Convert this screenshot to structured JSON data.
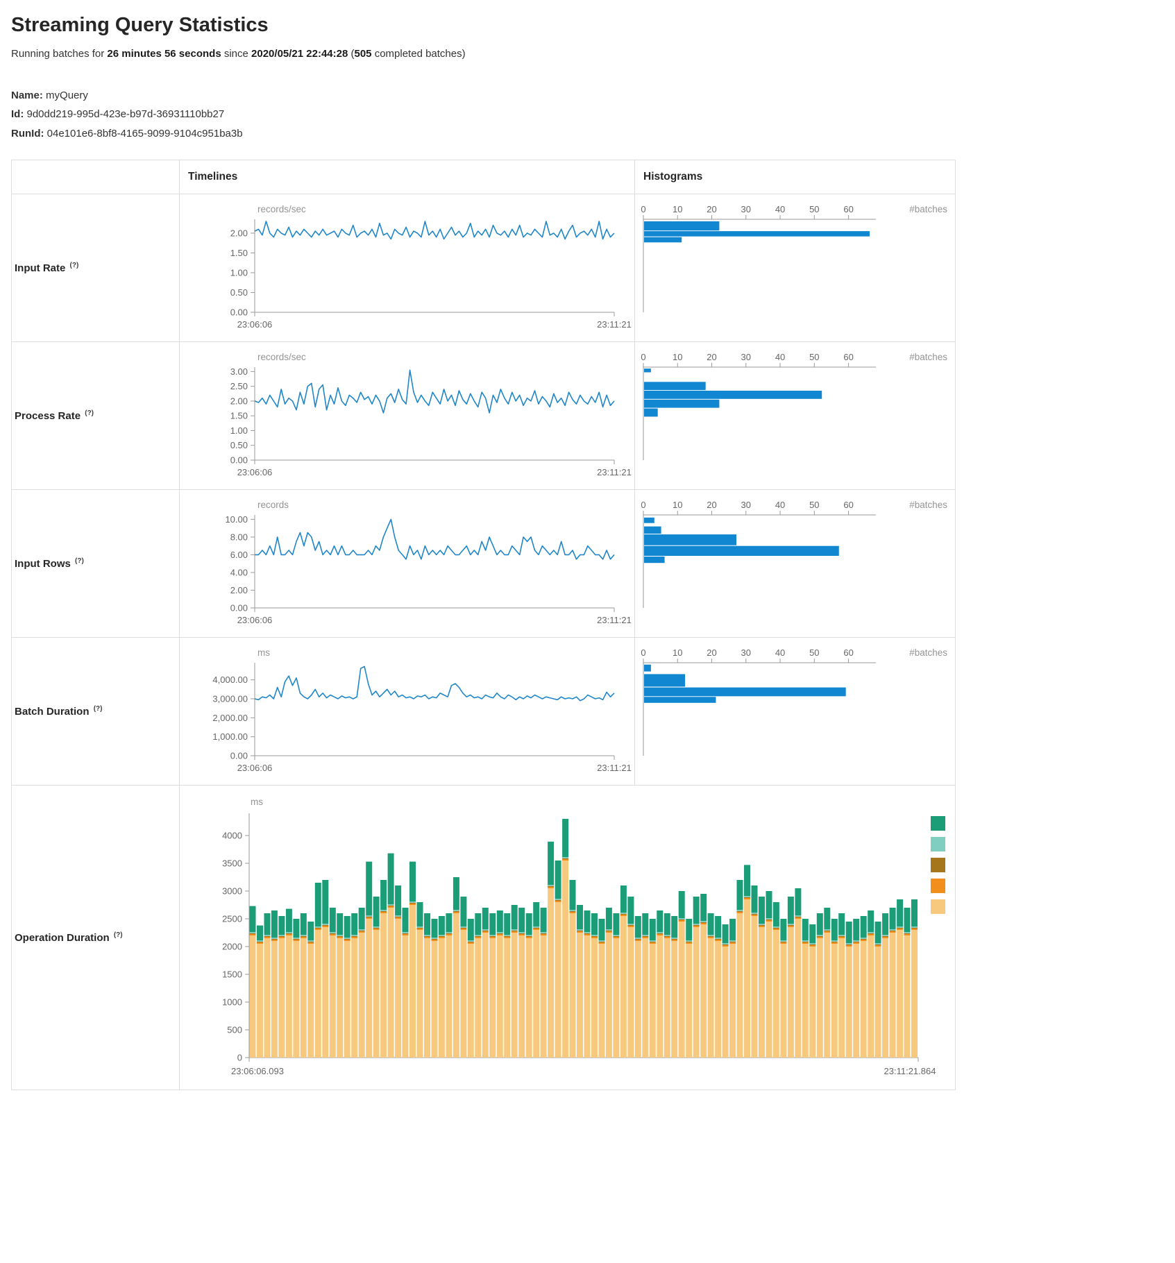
{
  "page": {
    "title": "Streaming Query Statistics",
    "status": {
      "prefix": "Running batches for ",
      "duration": "26 minutes 56 seconds",
      "since": " since ",
      "start_time": "2020/05/21 22:44:28",
      "paren": " (",
      "batch_count": "505",
      "suffix": " completed batches)"
    },
    "meta": {
      "name_label": "Name:",
      "name_value": "myQuery",
      "id_label": "Id:",
      "id_value": "9d0dd219-995d-423e-b97d-36931110bb27",
      "runid_label": "RunId:",
      "runid_value": "04e101e6-8bf8-4165-9099-9104c951ba3b"
    }
  },
  "table": {
    "col_timelines": "Timelines",
    "col_histograms": "Histograms",
    "rows": [
      {
        "label": "Input Rate",
        "hint": "(?)"
      },
      {
        "label": "Process Rate",
        "hint": "(?)"
      },
      {
        "label": "Input Rows",
        "hint": "(?)"
      },
      {
        "label": "Batch Duration",
        "hint": "(?)"
      },
      {
        "label": "Operation Duration",
        "hint": "(?)"
      }
    ]
  },
  "colors": {
    "line_blue": "#1f86c9",
    "hist_blue": "#1287d1",
    "axis_gray": "#9a9a9a",
    "tick_text": "#666666",
    "unit_text": "#949494"
  },
  "chart_data": [
    {
      "id": "input-rate-timeline",
      "type": "line",
      "row": "Input Rate",
      "unit": "records/sec",
      "color": "#1f86c9",
      "x_start": "23:06:06",
      "x_end": "23:11:21",
      "ymax": 2.35,
      "yticks": [
        {
          "v": 0,
          "t": "0.00"
        },
        {
          "v": 0.5,
          "t": "0.50"
        },
        {
          "v": 1,
          "t": "1.00"
        },
        {
          "v": 1.5,
          "t": "1.50"
        },
        {
          "v": 2,
          "t": "2.00"
        }
      ],
      "values": [
        2.05,
        2.1,
        1.95,
        2.3,
        2.0,
        1.9,
        2.1,
        2.0,
        1.95,
        2.15,
        1.9,
        2.05,
        1.95,
        2.1,
        2.0,
        1.9,
        2.05,
        1.95,
        2.1,
        1.95,
        2.0,
        2.05,
        1.9,
        2.1,
        2.0,
        1.95,
        2.2,
        1.9,
        2.0,
        2.05,
        1.95,
        2.1,
        1.9,
        2.25,
        1.95,
        2.0,
        1.85,
        2.1,
        2.0,
        1.95,
        2.15,
        1.9,
        2.05,
        2.0,
        1.9,
        2.3,
        1.95,
        2.05,
        1.9,
        2.1,
        1.85,
        2.0,
        2.15,
        1.95,
        2.05,
        1.9,
        2.0,
        2.25,
        1.9,
        2.05,
        1.95,
        2.1,
        1.9,
        2.2,
        2.0,
        1.95,
        2.05,
        1.9,
        2.1,
        1.95,
        2.2,
        1.9,
        2.0,
        1.95,
        2.1,
        2.0,
        1.9,
        2.3,
        1.95,
        2.0,
        1.9,
        2.1,
        1.85,
        2.05,
        2.2,
        1.9,
        2.0,
        2.05,
        1.95,
        2.1,
        1.9,
        2.3,
        1.85,
        2.1,
        1.9,
        2.0
      ]
    },
    {
      "id": "input-rate-histogram",
      "type": "bar",
      "orientation": "horizontal",
      "row": "Input Rate",
      "unit": "#batches",
      "color": "#1287d1",
      "xmax": 68,
      "xticks": [
        {
          "v": 0,
          "t": "0"
        },
        {
          "v": 10,
          "t": "10"
        },
        {
          "v": 20,
          "t": "20"
        },
        {
          "v": 30,
          "t": "30"
        },
        {
          "v": 40,
          "t": "40"
        },
        {
          "v": 50,
          "t": "50"
        },
        {
          "v": 60,
          "t": "60"
        }
      ],
      "ymax": 2.35,
      "bins": [
        {
          "lo": 2.05,
          "hi": 2.3,
          "count": 22
        },
        {
          "lo": 1.9,
          "hi": 2.05,
          "count": 66
        },
        {
          "lo": 1.75,
          "hi": 1.9,
          "count": 11
        }
      ]
    },
    {
      "id": "process-rate-timeline",
      "type": "line",
      "row": "Process Rate",
      "unit": "records/sec",
      "color": "#1f86c9",
      "x_start": "23:06:06",
      "x_end": "23:11:21",
      "ymax": 3.15,
      "yticks": [
        {
          "v": 0,
          "t": "0.00"
        },
        {
          "v": 0.5,
          "t": "0.50"
        },
        {
          "v": 1,
          "t": "1.00"
        },
        {
          "v": 1.5,
          "t": "1.50"
        },
        {
          "v": 2,
          "t": "2.00"
        },
        {
          "v": 2.5,
          "t": "2.50"
        },
        {
          "v": 3,
          "t": "3.00"
        }
      ],
      "values": [
        2.0,
        1.95,
        2.1,
        1.9,
        2.2,
        2.0,
        1.8,
        2.4,
        1.9,
        2.1,
        2.0,
        1.7,
        2.3,
        1.9,
        2.5,
        2.6,
        1.8,
        2.4,
        2.55,
        1.7,
        2.2,
        1.9,
        2.45,
        2.0,
        1.85,
        2.2,
        2.1,
        1.95,
        2.3,
        2.05,
        2.15,
        1.9,
        2.2,
        2.0,
        1.6,
        2.1,
        2.25,
        1.95,
        2.4,
        2.05,
        1.9,
        3.05,
        2.3,
        1.95,
        2.2,
        2.0,
        1.85,
        2.3,
        2.1,
        1.9,
        2.4,
        2.0,
        2.2,
        1.85,
        2.35,
        2.05,
        1.9,
        2.25,
        2.0,
        1.8,
        2.3,
        2.1,
        1.6,
        2.2,
        1.95,
        2.4,
        2.1,
        1.9,
        2.3,
        2.0,
        2.2,
        1.85,
        2.1,
        2.0,
        2.35,
        1.9,
        2.15,
        2.0,
        1.8,
        2.25,
        1.95,
        2.1,
        1.85,
        2.3,
        2.05,
        1.9,
        2.2,
        2.0,
        1.9,
        2.15,
        1.95,
        2.3,
        1.8,
        2.2,
        1.85,
        2.0
      ]
    },
    {
      "id": "process-rate-histogram",
      "type": "bar",
      "orientation": "horizontal",
      "row": "Process Rate",
      "unit": "#batches",
      "color": "#1287d1",
      "xmax": 68,
      "xticks": [
        {
          "v": 0,
          "t": "0"
        },
        {
          "v": 10,
          "t": "10"
        },
        {
          "v": 20,
          "t": "20"
        },
        {
          "v": 30,
          "t": "30"
        },
        {
          "v": 40,
          "t": "40"
        },
        {
          "v": 50,
          "t": "50"
        },
        {
          "v": 60,
          "t": "60"
        }
      ],
      "ymax": 3.15,
      "bins": [
        {
          "lo": 2.95,
          "hi": 3.1,
          "count": 2
        },
        {
          "lo": 2.35,
          "hi": 2.65,
          "count": 18
        },
        {
          "lo": 2.05,
          "hi": 2.35,
          "count": 52
        },
        {
          "lo": 1.75,
          "hi": 2.05,
          "count": 22
        },
        {
          "lo": 1.45,
          "hi": 1.75,
          "count": 4
        }
      ]
    },
    {
      "id": "input-rows-timeline",
      "type": "line",
      "row": "Input Rows",
      "unit": "records",
      "color": "#1f86c9",
      "x_start": "23:06:06",
      "x_end": "23:11:21",
      "ymax": 10.5,
      "yticks": [
        {
          "v": 0,
          "t": "0.00"
        },
        {
          "v": 2,
          "t": "2.00"
        },
        {
          "v": 4,
          "t": "4.00"
        },
        {
          "v": 6,
          "t": "6.00"
        },
        {
          "v": 8,
          "t": "8.00"
        },
        {
          "v": 10,
          "t": "10.00"
        }
      ],
      "values": [
        6,
        6,
        6.5,
        6,
        7,
        6,
        8,
        6,
        6,
        6.5,
        6,
        7.5,
        8.5,
        7,
        8.5,
        8,
        6.5,
        7.5,
        6,
        6.5,
        6,
        7,
        6,
        7,
        6,
        6,
        6.5,
        6,
        6,
        6,
        6.5,
        6,
        7,
        6.5,
        8,
        9,
        10,
        8,
        6.5,
        6,
        5.5,
        7,
        6,
        6.5,
        5.5,
        7,
        6,
        6.5,
        6,
        6.5,
        6,
        7,
        6.5,
        6,
        6,
        6.5,
        7,
        6,
        6.5,
        6,
        7.5,
        6.5,
        8,
        7,
        6,
        6.5,
        6,
        6,
        7,
        6.5,
        6,
        8,
        7.5,
        8,
        6.5,
        6,
        7,
        6.5,
        6,
        6.5,
        6,
        7.5,
        6,
        6,
        6.5,
        5.5,
        6,
        6,
        7,
        6.5,
        6,
        6,
        5.5,
        6.5,
        5.5,
        6
      ]
    },
    {
      "id": "input-rows-histogram",
      "type": "bar",
      "orientation": "horizontal",
      "row": "Input Rows",
      "unit": "#batches",
      "color": "#1287d1",
      "xmax": 68,
      "xticks": [
        {
          "v": 0,
          "t": "0"
        },
        {
          "v": 10,
          "t": "10"
        },
        {
          "v": 20,
          "t": "20"
        },
        {
          "v": 30,
          "t": "30"
        },
        {
          "v": 40,
          "t": "40"
        },
        {
          "v": 50,
          "t": "50"
        },
        {
          "v": 60,
          "t": "60"
        }
      ],
      "ymax": 10.5,
      "bins": [
        {
          "lo": 9.5,
          "hi": 10.2,
          "count": 3
        },
        {
          "lo": 8.3,
          "hi": 9.2,
          "count": 5
        },
        {
          "lo": 7.0,
          "hi": 8.3,
          "count": 27
        },
        {
          "lo": 5.8,
          "hi": 7.0,
          "count": 57
        },
        {
          "lo": 5.0,
          "hi": 5.8,
          "count": 6
        }
      ]
    },
    {
      "id": "batch-duration-timeline",
      "type": "line",
      "row": "Batch Duration",
      "unit": "ms",
      "color": "#1f86c9",
      "x_start": "23:06:06",
      "x_end": "23:11:21",
      "ymax": 4900,
      "yticks": [
        {
          "v": 0,
          "t": "0.00"
        },
        {
          "v": 1000,
          "t": "1,000.00"
        },
        {
          "v": 2000,
          "t": "2,000.00"
        },
        {
          "v": 3000,
          "t": "3,000.00"
        },
        {
          "v": 4000,
          "t": "4,000.00"
        }
      ],
      "values": [
        3000,
        2950,
        3100,
        3050,
        3200,
        3000,
        3600,
        3100,
        3900,
        4200,
        3700,
        4100,
        3300,
        3100,
        3000,
        3200,
        3500,
        3100,
        3300,
        3050,
        3200,
        3100,
        3000,
        3150,
        3050,
        3100,
        3000,
        3100,
        4600,
        4700,
        3800,
        3200,
        3400,
        3100,
        3300,
        3500,
        3200,
        3400,
        3100,
        3200,
        3050,
        3100,
        3000,
        3150,
        3100,
        3200,
        3000,
        3100,
        3050,
        3300,
        3200,
        3100,
        3700,
        3800,
        3600,
        3300,
        3100,
        3200,
        3050,
        3100,
        3000,
        3200,
        3100,
        3050,
        3300,
        3100,
        3000,
        3200,
        3100,
        2950,
        3100,
        3000,
        3150,
        3050,
        3200,
        3100,
        3000,
        3100,
        3050,
        3000,
        2950,
        3100,
        3000,
        3050,
        3000,
        3100,
        2900,
        3000,
        3200,
        3100,
        3000,
        3050,
        2950,
        3350,
        3100,
        3300
      ]
    },
    {
      "id": "batch-duration-histogram",
      "type": "bar",
      "orientation": "horizontal",
      "row": "Batch Duration",
      "unit": "#batches",
      "color": "#1287d1",
      "xmax": 68,
      "xticks": [
        {
          "v": 0,
          "t": "0"
        },
        {
          "v": 10,
          "t": "10"
        },
        {
          "v": 20,
          "t": "20"
        },
        {
          "v": 30,
          "t": "30"
        },
        {
          "v": 40,
          "t": "40"
        },
        {
          "v": 50,
          "t": "50"
        },
        {
          "v": 60,
          "t": "60"
        }
      ],
      "ymax": 4900,
      "bins": [
        {
          "lo": 4400,
          "hi": 4800,
          "count": 2
        },
        {
          "lo": 3600,
          "hi": 4300,
          "count": 12
        },
        {
          "lo": 3100,
          "hi": 3600,
          "count": 59
        },
        {
          "lo": 2750,
          "hi": 3100,
          "count": 21
        }
      ]
    },
    {
      "id": "operation-duration",
      "type": "bar",
      "stacked": true,
      "row": "Operation Duration",
      "unit": "ms",
      "x_start": "23:06:06.093",
      "x_end": "23:11:21.864",
      "ymax": 4400,
      "yticks": [
        {
          "v": 0,
          "t": "0"
        },
        {
          "v": 500,
          "t": "500"
        },
        {
          "v": 1000,
          "t": "1000"
        },
        {
          "v": 1500,
          "t": "1500"
        },
        {
          "v": 2000,
          "t": "2000"
        },
        {
          "v": 2500,
          "t": "2500"
        },
        {
          "v": 3000,
          "t": "3000"
        },
        {
          "v": 3500,
          "t": "3500"
        },
        {
          "v": 4000,
          "t": "4000"
        }
      ],
      "legend_colors": [
        "#1b9e77",
        "#80cdc1",
        "#a6761d",
        "#f28e1c",
        "#f7c97f"
      ],
      "series": [
        {
          "color": "#f7c97f",
          "values": [
            2200,
            2050,
            2150,
            2100,
            2150,
            2200,
            2100,
            2150,
            2050,
            2300,
            2350,
            2200,
            2150,
            2100,
            2150,
            2250,
            2500,
            2300,
            2600,
            2700,
            2500,
            2200,
            2750,
            2300,
            2150,
            2100,
            2150,
            2200,
            2600,
            2300,
            2050,
            2150,
            2250,
            2150,
            2200,
            2150,
            2250,
            2200,
            2150,
            2300,
            2200,
            3050,
            2800,
            3550,
            2600,
            2250,
            2200,
            2150,
            2050,
            2250,
            2150,
            2550,
            2350,
            2100,
            2150,
            2050,
            2200,
            2150,
            2100,
            2450,
            2050,
            2350,
            2400,
            2150,
            2100,
            2000,
            2050,
            2600,
            2850,
            2550,
            2350,
            2450,
            2300,
            2050,
            2350,
            2500,
            2050,
            2000,
            2150,
            2250,
            2050,
            2150,
            2000,
            2050,
            2100,
            2200,
            2000,
            2150,
            2250,
            2300,
            2200,
            2300
          ]
        },
        {
          "color": "#f28e1c",
          "value": 25
        },
        {
          "color": "#a6761d",
          "value": 15
        },
        {
          "color": "#80cdc1",
          "value": 20
        },
        {
          "color": "#1b9e77",
          "values": [
            470,
            270,
            390,
            490,
            340,
            420,
            340,
            390,
            340,
            790,
            790,
            440,
            390,
            390,
            390,
            390,
            970,
            540,
            540,
            920,
            540,
            440,
            720,
            440,
            390,
            340,
            340,
            340,
            590,
            540,
            390,
            390,
            390,
            390,
            390,
            390,
            440,
            440,
            390,
            440,
            440,
            780,
            690,
            690,
            540,
            440,
            390,
            390,
            390,
            390,
            390,
            490,
            490,
            390,
            390,
            390,
            390,
            390,
            390,
            490,
            390,
            490,
            490,
            390,
            390,
            340,
            390,
            540,
            560,
            490,
            490,
            490,
            440,
            390,
            490,
            490,
            390,
            340,
            390,
            390,
            390,
            390,
            390,
            390,
            390,
            390,
            390,
            390,
            390,
            490,
            440,
            490
          ]
        }
      ]
    }
  ]
}
